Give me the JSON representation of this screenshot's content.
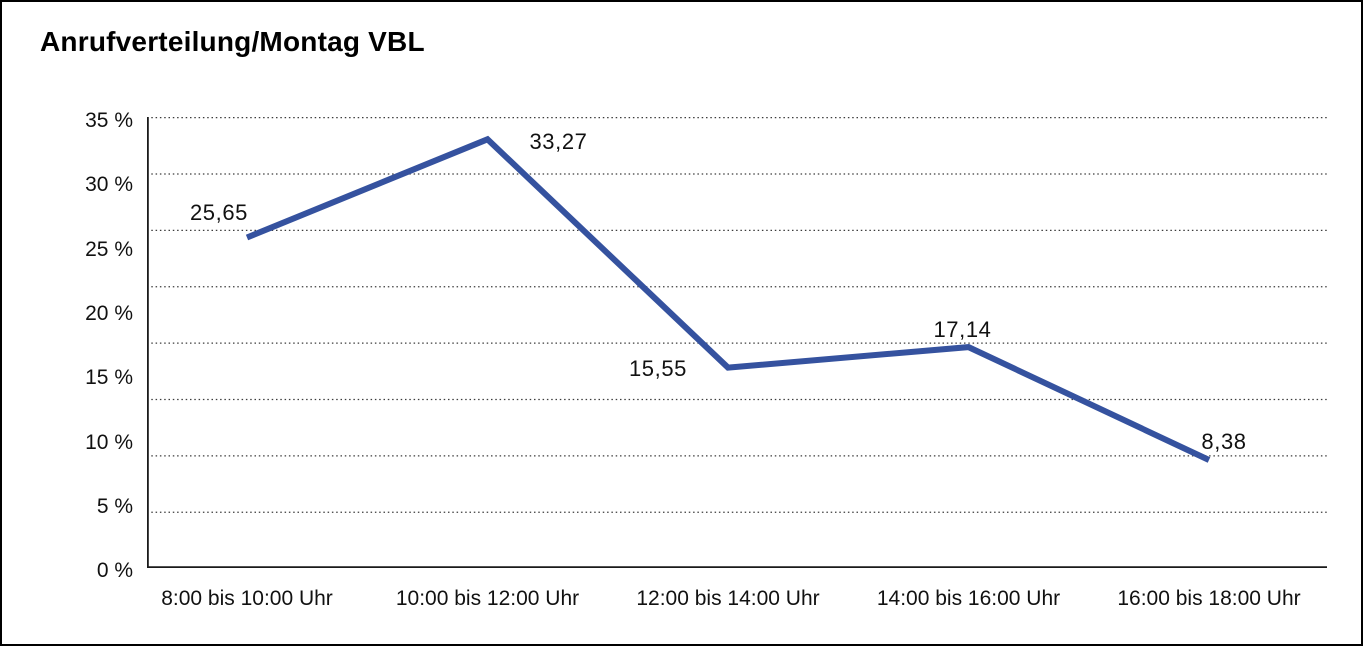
{
  "title": "Anrufverteilung/Montag VBL",
  "chart_data": {
    "type": "line",
    "title": "Anrufverteilung/Montag VBL",
    "categories": [
      "8:00 bis 10:00 Uhr",
      "10:00 bis 12:00 Uhr",
      "12:00 bis 14:00 Uhr",
      "14:00 bis 16:00 Uhr",
      "16:00 bis 18:00 Uhr"
    ],
    "series": [
      {
        "values": [
          25.65,
          33.27,
          15.55,
          17.14,
          8.38
        ]
      }
    ],
    "value_labels": [
      "25,65",
      "33,27",
      "15,55",
      "17,14",
      "8,38"
    ],
    "y_ticks": [
      "35 %",
      "30 %",
      "25 %",
      "20 %",
      "15 %",
      "10 %",
      "5 %",
      "0 %"
    ],
    "ylim": [
      0,
      35
    ],
    "xlabel": "",
    "ylabel": "",
    "legend": "none",
    "grid": "horizontal-dotted",
    "colors": {
      "line": "#35529F",
      "gridline": "#3c3c3c",
      "axis": "#1a1a1a",
      "text": "#111111"
    }
  }
}
